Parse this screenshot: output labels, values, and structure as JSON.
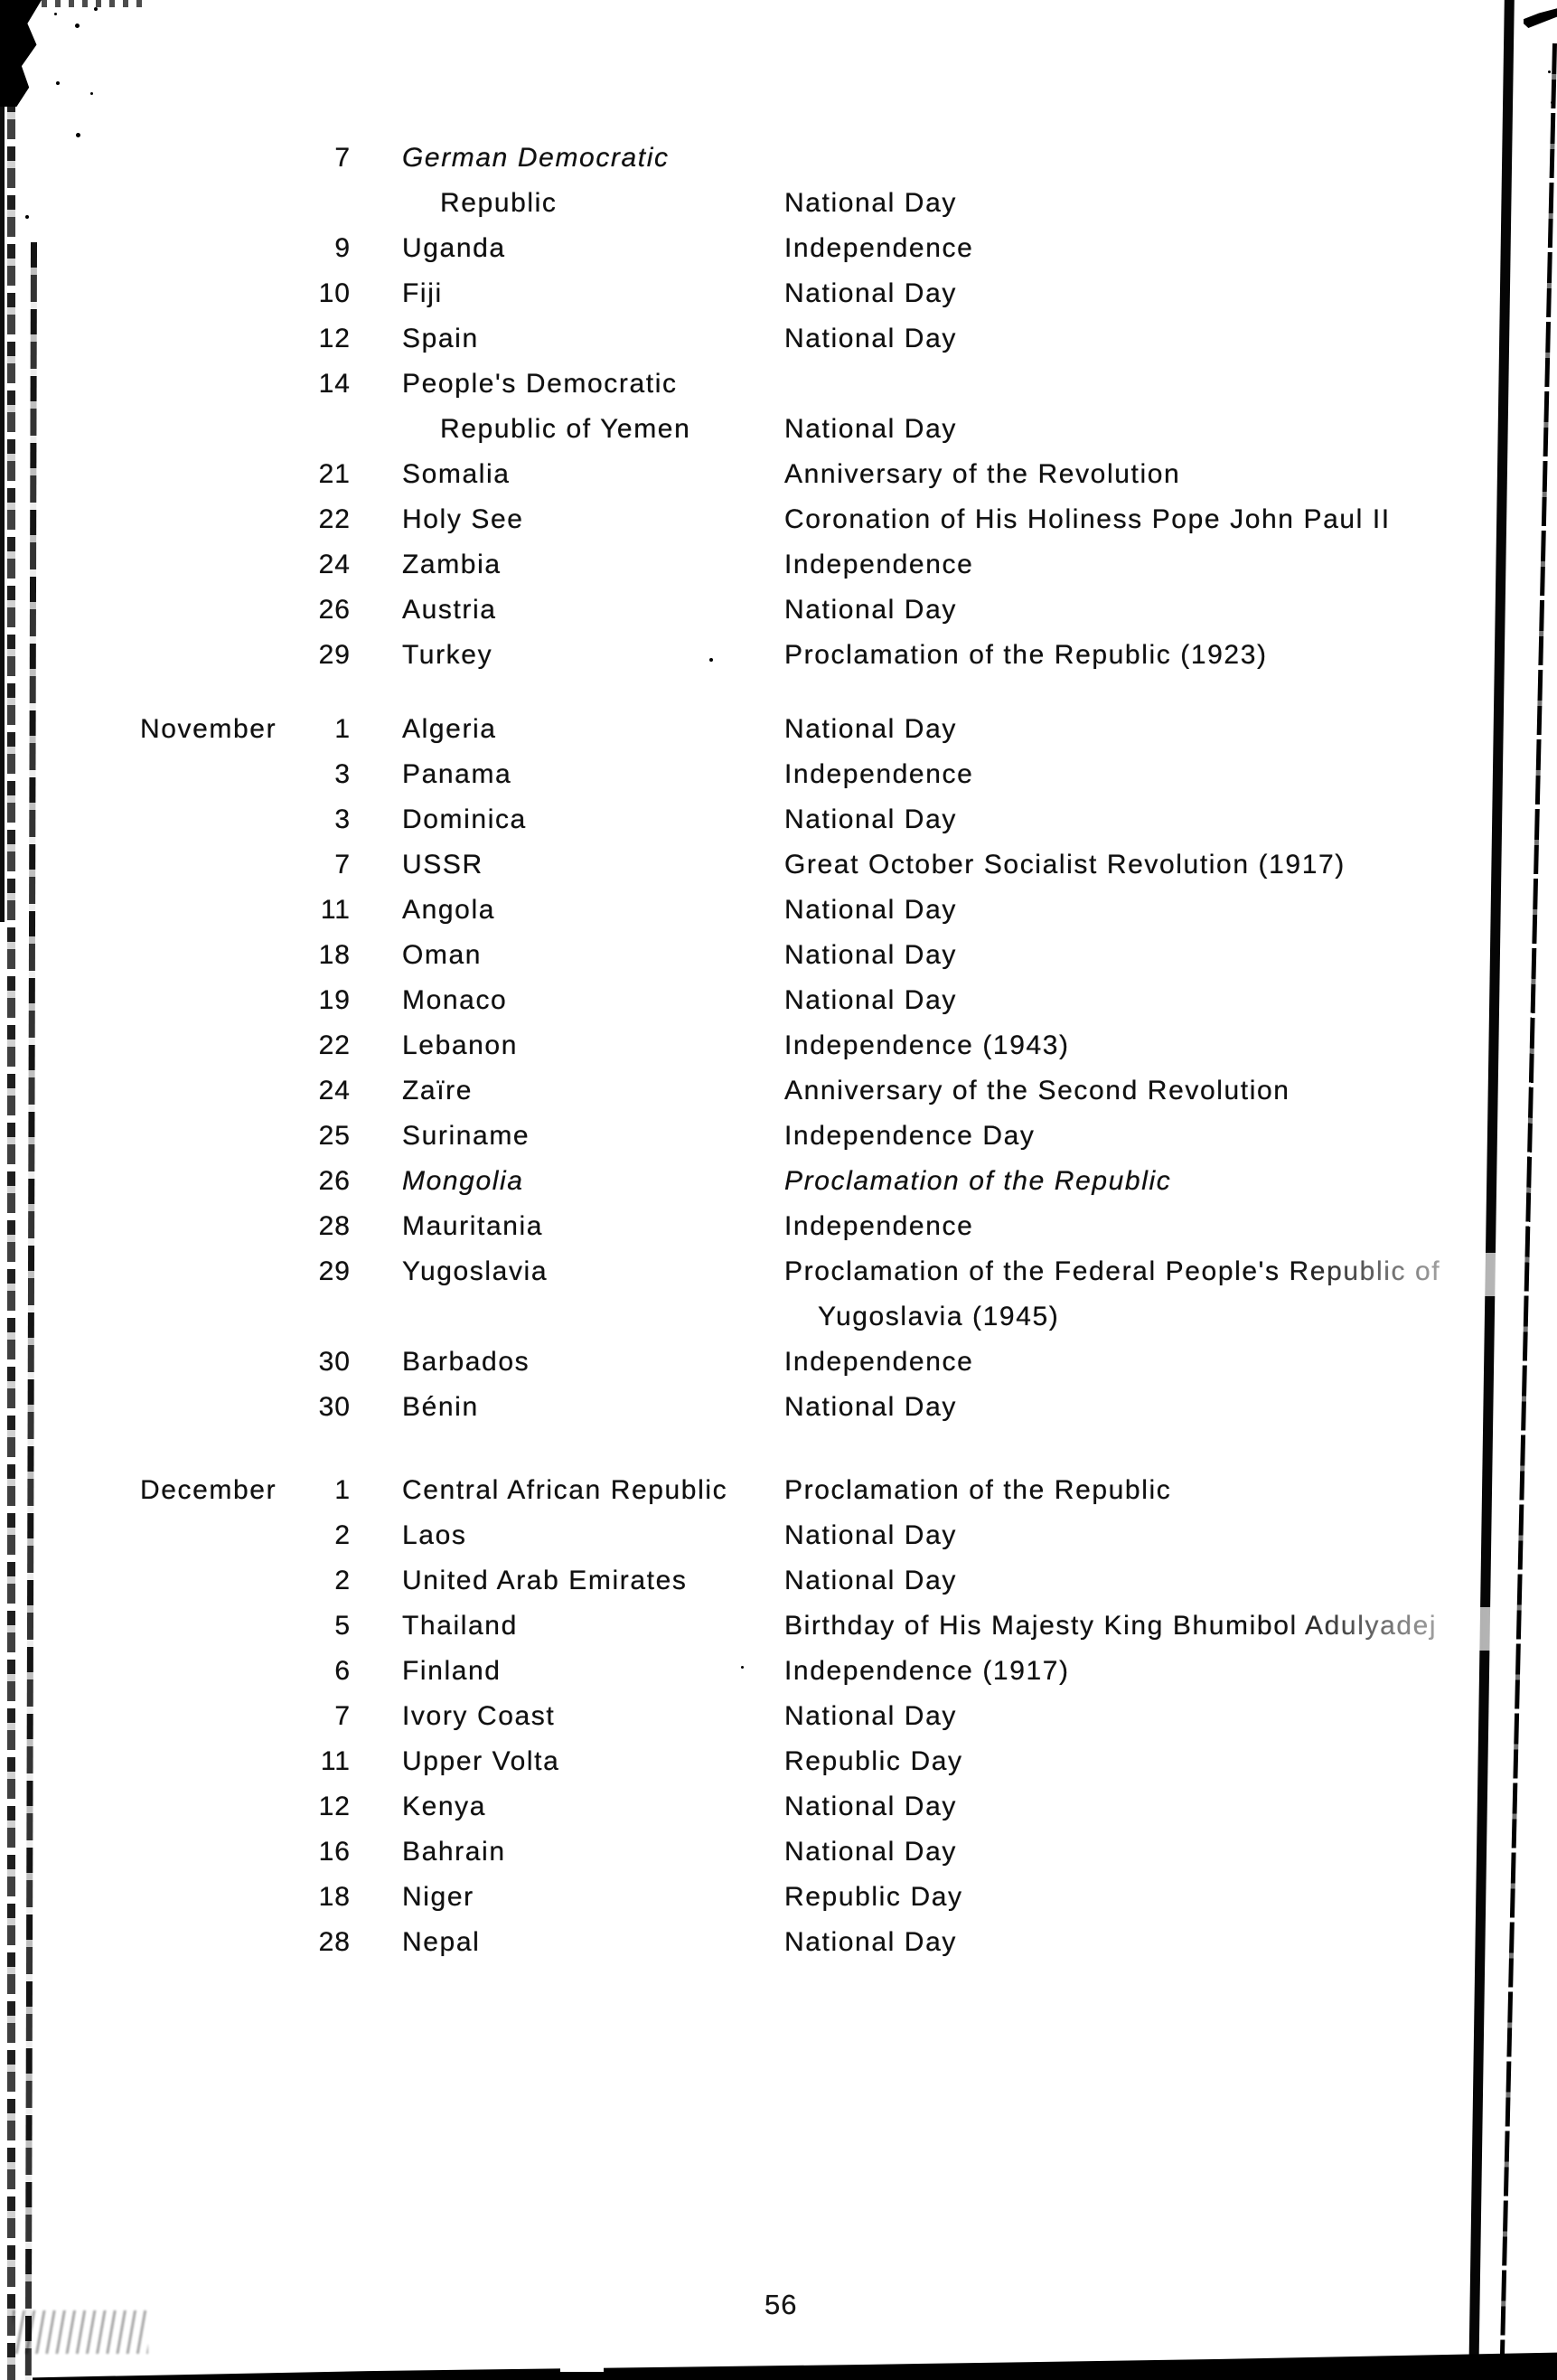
{
  "document": {
    "page_number": "56"
  },
  "sections": [
    {
      "lines": [
        {
          "day": "7",
          "country": "German Democratic",
          "italic": true
        },
        {
          "country": "Republic",
          "country_indent": true,
          "holiday": "National Day"
        },
        {
          "day": "9",
          "country": "Uganda",
          "holiday": "Independence"
        },
        {
          "day": "10",
          "country": "Fiji",
          "holiday": "National Day"
        },
        {
          "day": "12",
          "country": "Spain",
          "holiday": "National Day"
        },
        {
          "day": "14",
          "country": "People's Democratic"
        },
        {
          "country": "Republic of Yemen",
          "country_indent": true,
          "holiday": "National Day"
        },
        {
          "day": "21",
          "country": "Somalia",
          "holiday": "Anniversary of the Revolution"
        },
        {
          "day": "22",
          "country": "Holy See",
          "holiday": "Coronation of His Holiness Pope John Paul II"
        },
        {
          "day": "24",
          "country": "Zambia",
          "holiday": "Independence"
        },
        {
          "day": "26",
          "country": "Austria",
          "holiday": "National Day"
        },
        {
          "day": "29",
          "country": "Turkey",
          "holiday": "Proclamation of the Republic (1923)"
        }
      ]
    },
    {
      "lines": [
        {
          "month": "November",
          "day": "1",
          "country": "Algeria",
          "holiday": "National Day"
        },
        {
          "day": "3",
          "country": "Panama",
          "holiday": "Independence"
        },
        {
          "day": "3",
          "country": "Dominica",
          "holiday": "National Day"
        },
        {
          "day": "7",
          "country": "USSR",
          "holiday": "Great October Socialist Revolution (1917)"
        },
        {
          "day": "11",
          "country": "Angola",
          "holiday": "National Day"
        },
        {
          "day": "18",
          "country": "Oman",
          "holiday": "National Day"
        },
        {
          "day": "19",
          "country": "Monaco",
          "holiday": "National Day"
        },
        {
          "day": "22",
          "country": "Lebanon",
          "holiday": "Independence (1943)"
        },
        {
          "day": "24",
          "country": "Zaïre",
          "holiday": "Anniversary of the Second Revolution"
        },
        {
          "day": "25",
          "country": "Suriname",
          "holiday": "Independence Day"
        },
        {
          "day": "26",
          "country": "Mongolia",
          "holiday": "Proclamation of the Republic",
          "italic": true
        },
        {
          "day": "28",
          "country": "Mauritania",
          "holiday": "Independence"
        },
        {
          "day": "29",
          "country": "Yugoslavia",
          "holiday": "Proclamation of the Federal People's Republic of"
        },
        {
          "holiday": "Yugoslavia (1945)",
          "holiday_indent": true
        },
        {
          "day": "30",
          "country": "Barbados",
          "holiday": "Independence"
        },
        {
          "day": "30",
          "country": "Bénin",
          "holiday": "National Day"
        }
      ]
    },
    {
      "lines": [
        {
          "month": "December",
          "day": "1",
          "country": "Central African Republic",
          "holiday": "Proclamation of the Republic"
        },
        {
          "day": "2",
          "country": "Laos",
          "holiday": "National Day"
        },
        {
          "day": "2",
          "country": "United Arab Emirates",
          "holiday": "National Day"
        },
        {
          "day": "5",
          "country": "Thailand",
          "holiday": "Birthday of His Majesty King Bhumibol Adulyadej"
        },
        {
          "day": "6",
          "country": "Finland",
          "holiday": "Independence (1917)"
        },
        {
          "day": "7",
          "country": "Ivory Coast",
          "holiday": "National Day"
        },
        {
          "day": "11",
          "country": "Upper Volta",
          "holiday": "Republic Day"
        },
        {
          "day": "12",
          "country": "Kenya",
          "holiday": "National Day"
        },
        {
          "day": "16",
          "country": "Bahrain",
          "holiday": "National Day"
        },
        {
          "day": "18",
          "country": "Niger",
          "holiday": "Republic Day"
        },
        {
          "day": "28",
          "country": "Nepal",
          "holiday": "National Day"
        }
      ]
    }
  ]
}
